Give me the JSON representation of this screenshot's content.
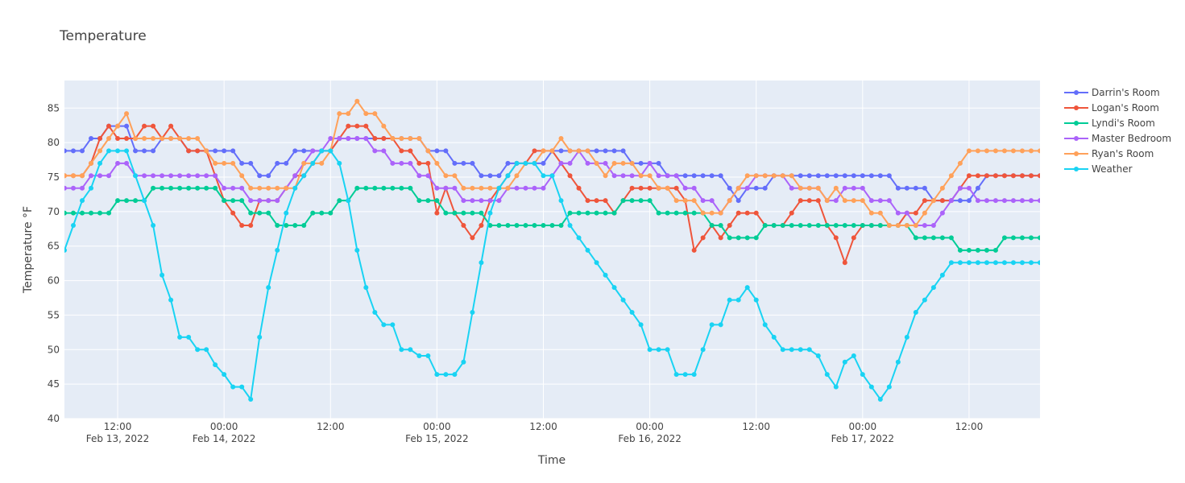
{
  "chart_data": {
    "type": "line",
    "title": "Temperature",
    "xlabel": "Time",
    "ylabel": "Temperature °F",
    "x_start": "2022-02-13T06:00",
    "x_step_hours": 1,
    "xlim": [
      "2022-02-13T06:00",
      "2022-02-17T20:00"
    ],
    "ylim": [
      40,
      89
    ],
    "y_ticks": [
      40,
      45,
      50,
      55,
      60,
      65,
      70,
      75,
      80,
      85
    ],
    "x_ticks": [
      {
        "at": "2022-02-13T12:00",
        "line1": "12:00",
        "line2": "Feb 13, 2022"
      },
      {
        "at": "2022-02-14T00:00",
        "line1": "00:00",
        "line2": "Feb 14, 2022"
      },
      {
        "at": "2022-02-14T12:00",
        "line1": "12:00",
        "line2": ""
      },
      {
        "at": "2022-02-15T00:00",
        "line1": "00:00",
        "line2": "Feb 15, 2022"
      },
      {
        "at": "2022-02-15T12:00",
        "line1": "12:00",
        "line2": ""
      },
      {
        "at": "2022-02-16T00:00",
        "line1": "00:00",
        "line2": "Feb 16, 2022"
      },
      {
        "at": "2022-02-16T12:00",
        "line1": "12:00",
        "line2": ""
      },
      {
        "at": "2022-02-17T00:00",
        "line1": "00:00",
        "line2": "Feb 17, 2022"
      },
      {
        "at": "2022-02-17T12:00",
        "line1": "12:00",
        "line2": ""
      }
    ],
    "grid": true,
    "legend_position": "top-right",
    "series": [
      {
        "name": "Darrin's Room",
        "color": "#636efa",
        "values": [
          78.8,
          78.8,
          78.8,
          80.6,
          80.6,
          82.4,
          82.4,
          82.4,
          78.8,
          78.8,
          78.8,
          80.6,
          80.6,
          80.6,
          78.8,
          78.8,
          78.8,
          78.8,
          78.8,
          78.8,
          77,
          77,
          75.2,
          75.2,
          77,
          77,
          78.8,
          78.8,
          78.8,
          78.8,
          78.8,
          80.6,
          80.6,
          80.6,
          80.6,
          80.6,
          80.6,
          80.6,
          80.6,
          80.6,
          80.6,
          78.8,
          78.8,
          78.8,
          77,
          77,
          77,
          75.2,
          75.2,
          75.2,
          77,
          77,
          77,
          77,
          77,
          78.8,
          78.8,
          78.8,
          78.8,
          78.8,
          78.8,
          78.8,
          78.8,
          78.8,
          77,
          77,
          77,
          77,
          75.2,
          75.2,
          75.2,
          75.2,
          75.2,
          75.2,
          75.2,
          73.4,
          71.6,
          73.4,
          73.4,
          73.4,
          75.2,
          75.2,
          75.2,
          75.2,
          75.2,
          75.2,
          75.2,
          75.2,
          75.2,
          75.2,
          75.2,
          75.2,
          75.2,
          75.2,
          73.4,
          73.4,
          73.4,
          73.4,
          71.6,
          71.6,
          71.6,
          71.6,
          71.6,
          73.4,
          75.2,
          75.2,
          75.2,
          75.2,
          75.2,
          75.2,
          75.2,
          75.2,
          75.2
        ]
      },
      {
        "name": "Logan's Room",
        "color": "#ef553b",
        "values": [
          75.2,
          75.2,
          75.2,
          77,
          80.6,
          82.4,
          80.6,
          80.6,
          80.6,
          82.4,
          82.4,
          80.6,
          82.4,
          80.6,
          78.8,
          78.8,
          78.8,
          75.2,
          71.6,
          69.8,
          68,
          68,
          71.6,
          71.6,
          71.6,
          73.4,
          75.2,
          75.2,
          77,
          78.8,
          78.8,
          80.6,
          82.4,
          82.4,
          82.4,
          80.6,
          80.6,
          80.6,
          78.8,
          78.8,
          77,
          77,
          69.8,
          73.4,
          69.8,
          68,
          66.2,
          68,
          71.6,
          73.4,
          75.2,
          77,
          77,
          78.8,
          78.8,
          78.8,
          77,
          75.2,
          73.4,
          71.6,
          71.6,
          71.6,
          69.8,
          71.6,
          73.4,
          73.4,
          73.4,
          73.4,
          73.4,
          73.4,
          71.6,
          64.4,
          66.2,
          68,
          66.2,
          68,
          69.8,
          69.8,
          69.8,
          68,
          68,
          68,
          69.8,
          71.6,
          71.6,
          71.6,
          68,
          66.2,
          62.6,
          66.2,
          68,
          68,
          68,
          68,
          68,
          69.8,
          69.8,
          71.6,
          71.6,
          71.6,
          71.6,
          73.4,
          75.2,
          75.2,
          75.2,
          75.2,
          75.2,
          75.2,
          75.2,
          75.2,
          75.2,
          75.2,
          75.2
        ]
      },
      {
        "name": "Lyndi's Room",
        "color": "#00cc96",
        "values": [
          69.8,
          69.8,
          69.8,
          69.8,
          69.8,
          69.8,
          71.6,
          71.6,
          71.6,
          71.6,
          73.4,
          73.4,
          73.4,
          73.4,
          73.4,
          73.4,
          73.4,
          73.4,
          71.6,
          71.6,
          71.6,
          69.8,
          69.8,
          69.8,
          68,
          68,
          68,
          68,
          69.8,
          69.8,
          69.8,
          71.6,
          71.6,
          73.4,
          73.4,
          73.4,
          73.4,
          73.4,
          73.4,
          73.4,
          71.6,
          71.6,
          71.6,
          69.8,
          69.8,
          69.8,
          69.8,
          69.8,
          68,
          68,
          68,
          68,
          68,
          68,
          68,
          68,
          68,
          69.8,
          69.8,
          69.8,
          69.8,
          69.8,
          69.8,
          71.6,
          71.6,
          71.6,
          71.6,
          69.8,
          69.8,
          69.8,
          69.8,
          69.8,
          69.8,
          68,
          68,
          66.2,
          66.2,
          66.2,
          66.2,
          68,
          68,
          68,
          68,
          68,
          68,
          68,
          68,
          68,
          68,
          68,
          68,
          68,
          68,
          68,
          68,
          68,
          66.2,
          66.2,
          66.2,
          66.2,
          66.2,
          64.4,
          64.4,
          64.4,
          64.4,
          64.4,
          66.2,
          66.2,
          66.2,
          66.2,
          66.2,
          66.2,
          66.2,
          66.2,
          66.2
        ]
      },
      {
        "name": "Master Bedroom",
        "color": "#ab63fa",
        "values": [
          73.4,
          73.4,
          73.4,
          75.2,
          75.2,
          75.2,
          77,
          77,
          75.2,
          75.2,
          75.2,
          75.2,
          75.2,
          75.2,
          75.2,
          75.2,
          75.2,
          75.2,
          73.4,
          73.4,
          73.4,
          71.6,
          71.6,
          71.6,
          71.6,
          73.4,
          75.2,
          77,
          78.8,
          78.8,
          80.6,
          80.6,
          80.6,
          80.6,
          80.6,
          78.8,
          78.8,
          77,
          77,
          77,
          75.2,
          75.2,
          73.4,
          73.4,
          73.4,
          71.6,
          71.6,
          71.6,
          71.6,
          71.6,
          73.4,
          73.4,
          73.4,
          73.4,
          73.4,
          75.2,
          77,
          77,
          78.8,
          77,
          77,
          77,
          75.2,
          75.2,
          75.2,
          75.2,
          77,
          75.2,
          75.2,
          75.2,
          73.4,
          73.4,
          71.6,
          71.6,
          69.8,
          71.6,
          73.4,
          73.4,
          75.2,
          75.2,
          75.2,
          75.2,
          73.4,
          73.4,
          73.4,
          73.4,
          71.6,
          71.6,
          73.4,
          73.4,
          73.4,
          71.6,
          71.6,
          71.6,
          69.8,
          69.8,
          68,
          68,
          68,
          69.8,
          71.6,
          73.4,
          73.4,
          71.6,
          71.6,
          71.6,
          71.6,
          71.6,
          71.6,
          71.6,
          71.6,
          71.6,
          71.6
        ]
      },
      {
        "name": "Ryan's Room",
        "color": "#ffa15a",
        "values": [
          75.2,
          75.2,
          75.2,
          77,
          78.8,
          80.6,
          82.4,
          84.2,
          80.6,
          80.6,
          80.6,
          80.6,
          80.6,
          80.6,
          80.6,
          80.6,
          78.8,
          77,
          77,
          77,
          75.2,
          73.4,
          73.4,
          73.4,
          73.4,
          73.4,
          73.4,
          77,
          77,
          77,
          78.8,
          84.2,
          84.2,
          86,
          84.2,
          84.2,
          82.4,
          80.6,
          80.6,
          80.6,
          80.6,
          78.8,
          77,
          75.2,
          75.2,
          73.4,
          73.4,
          73.4,
          73.4,
          73.4,
          73.4,
          75.2,
          77,
          77,
          78.8,
          78.8,
          80.6,
          78.8,
          78.8,
          78.8,
          77,
          75.2,
          77,
          77,
          77,
          75.2,
          75.2,
          73.4,
          73.4,
          71.6,
          71.6,
          71.6,
          69.8,
          69.8,
          69.8,
          71.6,
          73.4,
          75.2,
          75.2,
          75.2,
          75.2,
          75.2,
          75.2,
          73.4,
          73.4,
          73.4,
          71.6,
          73.4,
          71.6,
          71.6,
          71.6,
          69.8,
          69.8,
          68,
          68,
          68,
          68,
          69.8,
          71.6,
          73.4,
          75.2,
          77,
          78.8,
          78.8,
          78.8,
          78.8,
          78.8,
          78.8,
          78.8,
          78.8,
          78.8,
          78.8,
          78.8
        ]
      },
      {
        "name": "Weather",
        "color": "#19d3f3",
        "values": [
          64.4,
          68,
          71.6,
          73.4,
          77,
          78.8,
          78.8,
          78.8,
          75.2,
          71.6,
          68,
          60.8,
          57.2,
          51.8,
          51.8,
          50,
          50,
          47.8,
          46.4,
          44.6,
          44.6,
          42.8,
          51.8,
          59,
          64.4,
          69.8,
          73.4,
          75.2,
          77,
          78.8,
          78.8,
          77,
          71.6,
          64.4,
          59,
          55.4,
          53.6,
          53.6,
          50,
          50,
          49.1,
          49.1,
          46.4,
          46.4,
          46.4,
          48.2,
          55.4,
          62.6,
          69.8,
          73.4,
          75.2,
          77,
          77,
          77,
          75.2,
          75.2,
          71.6,
          68,
          66.2,
          64.4,
          62.6,
          60.8,
          59,
          57.2,
          55.4,
          53.6,
          50,
          50,
          50,
          46.4,
          46.4,
          46.4,
          50,
          53.6,
          53.6,
          57.2,
          57.2,
          59,
          57.2,
          53.6,
          51.8,
          50,
          50,
          50,
          50,
          49.1,
          46.4,
          44.6,
          48.2,
          49.1,
          46.4,
          44.6,
          42.8,
          44.6,
          48.2,
          51.8,
          55.4,
          57.2,
          59,
          60.8,
          62.6,
          62.6,
          62.6,
          62.6,
          62.6,
          62.6,
          62.6,
          62.6,
          62.6,
          62.6,
          62.6,
          62.6,
          62.6
        ]
      }
    ]
  }
}
